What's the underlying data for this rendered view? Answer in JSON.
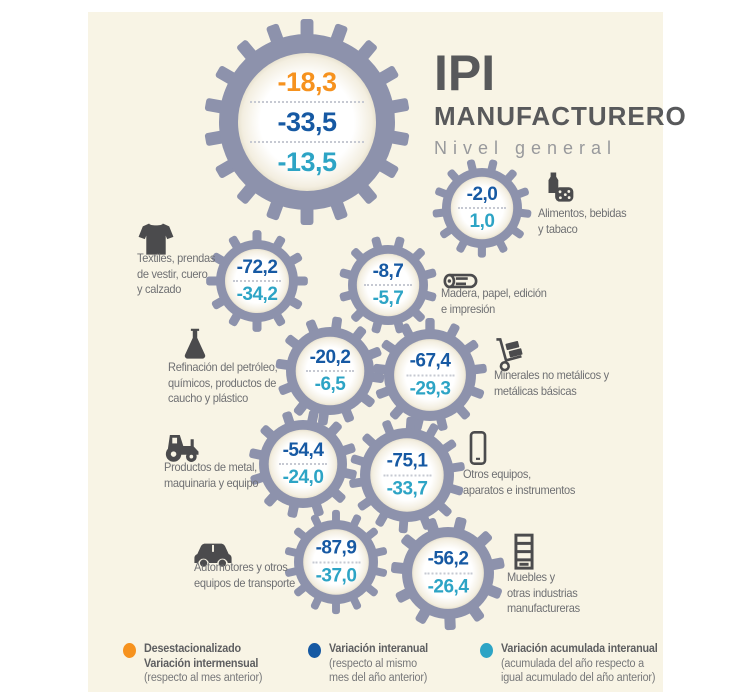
{
  "title": {
    "main": "IPI",
    "subtitle": "MANUFACTURERO",
    "tagline": "Nivel general"
  },
  "main_gear": {
    "intermensual": "-18,3",
    "interanual": "-33,5",
    "acumulada": "-13,5"
  },
  "sectors": [
    {
      "id": "alimentos",
      "icon": "food",
      "label_lines": [
        "Alimentos, bebidas",
        "y tabaco"
      ],
      "interanual": "-2,0",
      "acumulada": "1,0"
    },
    {
      "id": "textiles",
      "icon": "sweater",
      "label_lines": [
        "Textiles, prendas",
        "de vestir, cuero",
        "y calzado"
      ],
      "interanual": "-72,2",
      "acumulada": "-34,2"
    },
    {
      "id": "madera",
      "icon": "log",
      "label_lines": [
        "Madera, papel, edición",
        "e impresión"
      ],
      "interanual": "-8,7",
      "acumulada": "-5,7"
    },
    {
      "id": "refinacion",
      "icon": "flask",
      "label_lines": [
        "Refinación del petróleo,",
        "químicos, productos de",
        "caucho y plástico"
      ],
      "interanual": "-20,2",
      "acumulada": "-6,5"
    },
    {
      "id": "minerales",
      "icon": "handtruck",
      "label_lines": [
        "Minerales no metálicos y",
        "metálicas básicas"
      ],
      "interanual": "-67,4",
      "acumulada": "-29,3"
    },
    {
      "id": "metal",
      "icon": "tractor",
      "label_lines": [
        "Productos de metal,",
        "maquinaria y equipo"
      ],
      "interanual": "-54,4",
      "acumulada": "-24,0"
    },
    {
      "id": "otros_equipos",
      "icon": "phone",
      "label_lines": [
        "Otros equipos,",
        "aparatos e instrumentos"
      ],
      "interanual": "-75,1",
      "acumulada": "-33,7"
    },
    {
      "id": "automotores",
      "icon": "car",
      "label_lines": [
        "Automotores y otros",
        "equipos de transporte"
      ],
      "interanual": "-87,9",
      "acumulada": "-37,0"
    },
    {
      "id": "muebles",
      "icon": "shelf",
      "label_lines": [
        "Muebles y",
        "otras industrias",
        "manufactureras"
      ],
      "interanual": "-56,2",
      "acumulada": "-26,4"
    }
  ],
  "legend": [
    {
      "color": "#f6921e",
      "bold_lines": [
        "Desestacionalizado",
        "Variación intermensual"
      ],
      "normal_lines": [
        "(respecto al mes anterior)"
      ]
    },
    {
      "color": "#1659a3",
      "bold_lines": [
        "Variación interanual"
      ],
      "normal_lines": [
        "(respecto al mismo",
        "mes del año anterior)"
      ]
    },
    {
      "color": "#2da4c5",
      "bold_lines": [
        "Variación acumulada interanual"
      ],
      "normal_lines": [
        "(acumulada del año respecto a",
        "igual acumulado del año anterior)"
      ]
    }
  ],
  "colors": {
    "background_panel": "#f8f4e5",
    "gear": "#8d92ac",
    "orange": "#f6921e",
    "dark_blue": "#1659a3",
    "cyan": "#2da4c5",
    "title_text": "#58595b",
    "tagline_text": "#98999c",
    "label_text": "#6f7073",
    "icon": "#4b4b4d"
  },
  "chart_data": {
    "type": "table",
    "title": "IPI MANUFACTURERO — Nivel general",
    "general_level": {
      "variacion_intermensual_desestacionalizada": -18.3,
      "variacion_interanual": -33.5,
      "variacion_acumulada_interanual": -13.5
    },
    "categories": [
      "Alimentos, bebidas y tabaco",
      "Textiles, prendas de vestir, cuero y calzado",
      "Madera, papel, edición e impresión",
      "Refinación del petróleo, químicos, productos de caucho y plástico",
      "Minerales no metálicos y metálicas básicas",
      "Productos de metal, maquinaria y equipo",
      "Otros equipos, aparatos e instrumentos",
      "Automotores y otros equipos de transporte",
      "Muebles y otras industrias manufactureras"
    ],
    "series": [
      {
        "name": "Variación interanual",
        "values": [
          -2.0,
          -72.2,
          -8.7,
          -20.2,
          -67.4,
          -54.4,
          -75.1,
          -87.9,
          -56.2
        ]
      },
      {
        "name": "Variación acumulada interanual",
        "values": [
          1.0,
          -34.2,
          -5.7,
          -6.5,
          -29.3,
          -24.0,
          -33.7,
          -37.0,
          -26.4
        ]
      }
    ],
    "legend_position": "bottom",
    "grid": false
  }
}
